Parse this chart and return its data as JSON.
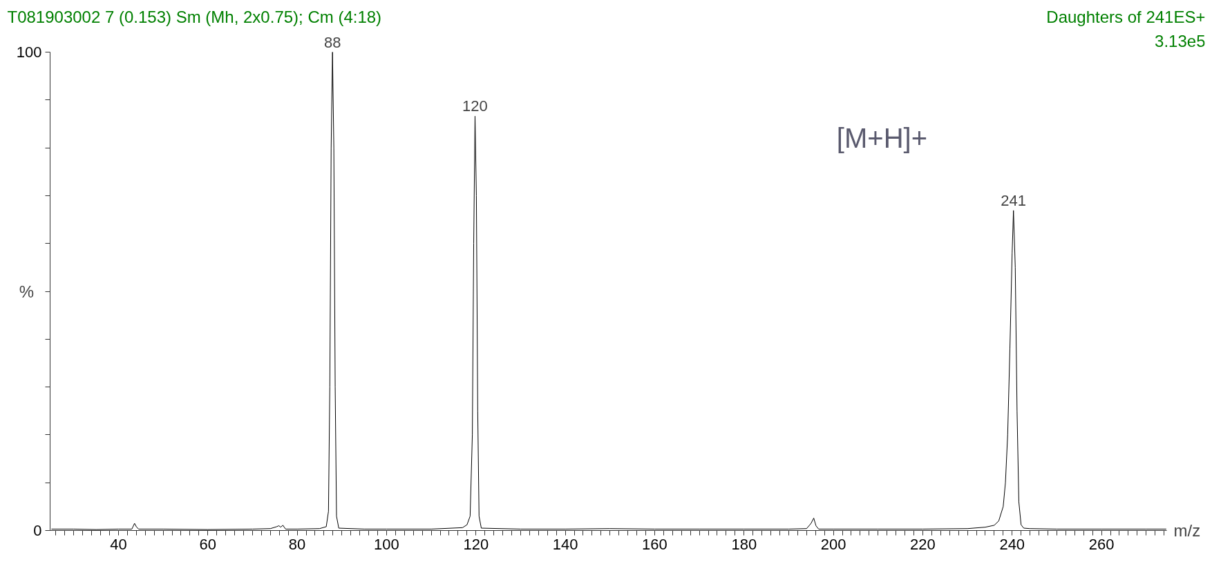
{
  "chart_data": {
    "type": "line",
    "title": "T081903002  7 (0.153) Sm (Mh, 2x0.75); Cm (4:18)",
    "xlabel": "m/z",
    "ylabel": "%",
    "annotations": [
      "Daughters of 241ES+",
      "3.13e5",
      "[M+H]+",
      {
        "text": "88",
        "x": 87.9,
        "y": 100
      },
      {
        "text": "120",
        "x": 119.8,
        "y": 86.6
      },
      {
        "text": "241",
        "x": 240.3,
        "y": 66.9
      }
    ],
    "series": [
      {
        "color": "#000000",
        "x": [
          25,
          30,
          35,
          40,
          43,
          43.6,
          44,
          44.5,
          50,
          60,
          70,
          74,
          75.4,
          75.9,
          76.3,
          76.8,
          77.4,
          80,
          85,
          86.5,
          87.0,
          87.3,
          87.6,
          87.9,
          88.2,
          88.5,
          88.8,
          89.3,
          95,
          100,
          110,
          117,
          118,
          118.7,
          119.2,
          119.5,
          119.8,
          120.1,
          120.4,
          120.7,
          121.2,
          130,
          140,
          150,
          160,
          170,
          180,
          190,
          194,
          195.0,
          195.6,
          196.1,
          196.7,
          200,
          210,
          220,
          230,
          234,
          236,
          237,
          238,
          238.5,
          239.0,
          239.5,
          240.0,
          240.3,
          240.7,
          241.1,
          241.5,
          242.0,
          242.6,
          244,
          250,
          260,
          270,
          274.5
        ],
        "values": [
          0.3,
          0.3,
          0.2,
          0.3,
          0.3,
          1.5,
          0.8,
          0.3,
          0.3,
          0.2,
          0.3,
          0.4,
          0.8,
          1.0,
          0.7,
          1.1,
          0.3,
          0.3,
          0.4,
          0.8,
          4,
          30,
          80,
          100,
          80,
          30,
          3,
          0.5,
          0.3,
          0.3,
          0.3,
          0.6,
          1.2,
          3,
          20,
          60,
          86.6,
          70,
          25,
          3,
          0.5,
          0.3,
          0.3,
          0.4,
          0.3,
          0.3,
          0.3,
          0.3,
          0.4,
          1.5,
          2.6,
          1.0,
          0.3,
          0.3,
          0.3,
          0.3,
          0.4,
          0.7,
          1.1,
          2,
          5,
          10,
          20,
          38,
          58,
          66.9,
          55,
          25,
          6,
          1.2,
          0.5,
          0.4,
          0.3,
          0.3,
          0.3,
          0.3
        ]
      }
    ],
    "xlim": [
      24.7,
      274.6
    ],
    "ylim": [
      0,
      100
    ],
    "xticks": [
      {
        "value": 26,
        "label": null
      },
      {
        "value": 28,
        "label": null
      },
      {
        "value": 30,
        "label": null
      },
      {
        "value": 32,
        "label": null
      },
      {
        "value": 34,
        "label": null
      },
      {
        "value": 36,
        "label": null
      },
      {
        "value": 38,
        "label": null
      },
      40,
      {
        "value": 42,
        "label": null
      },
      {
        "value": 44,
        "label": null
      },
      {
        "value": 46,
        "label": null
      },
      {
        "value": 48,
        "label": null
      },
      {
        "value": 50,
        "label": null
      },
      {
        "value": 52,
        "label": null
      },
      {
        "value": 54,
        "label": null
      },
      {
        "value": 56,
        "label": null
      },
      {
        "value": 58,
        "label": null
      },
      60,
      {
        "value": 62,
        "label": null
      },
      {
        "value": 64,
        "label": null
      },
      {
        "value": 66,
        "label": null
      },
      {
        "value": 68,
        "label": null
      },
      {
        "value": 70,
        "label": null
      },
      {
        "value": 72,
        "label": null
      },
      {
        "value": 74,
        "label": null
      },
      {
        "value": 76,
        "label": null
      },
      {
        "value": 78,
        "label": null
      },
      80,
      {
        "value": 82,
        "label": null
      },
      {
        "value": 84,
        "label": null
      },
      {
        "value": 86,
        "label": null
      },
      {
        "value": 88,
        "label": null
      },
      {
        "value": 90,
        "label": null
      },
      {
        "value": 92,
        "label": null
      },
      {
        "value": 94,
        "label": null
      },
      {
        "value": 96,
        "label": null
      },
      {
        "value": 98,
        "label": null
      },
      100,
      {
        "value": 102,
        "label": null
      },
      {
        "value": 104,
        "label": null
      },
      {
        "value": 106,
        "label": null
      },
      {
        "value": 108,
        "label": null
      },
      {
        "value": 110,
        "label": null
      },
      {
        "value": 112,
        "label": null
      },
      {
        "value": 114,
        "label": null
      },
      {
        "value": 116,
        "label": null
      },
      {
        "value": 118,
        "label": null
      },
      120,
      {
        "value": 122,
        "label": null
      },
      {
        "value": 124,
        "label": null
      },
      {
        "value": 126,
        "label": null
      },
      {
        "value": 128,
        "label": null
      },
      {
        "value": 130,
        "label": null
      },
      {
        "value": 132,
        "label": null
      },
      {
        "value": 134,
        "label": null
      },
      {
        "value": 136,
        "label": null
      },
      {
        "value": 138,
        "label": null
      },
      140,
      {
        "value": 142,
        "label": null
      },
      {
        "value": 144,
        "label": null
      },
      {
        "value": 146,
        "label": null
      },
      {
        "value": 148,
        "label": null
      },
      {
        "value": 150,
        "label": null
      },
      {
        "value": 152,
        "label": null
      },
      {
        "value": 154,
        "label": null
      },
      {
        "value": 156,
        "label": null
      },
      {
        "value": 158,
        "label": null
      },
      160,
      {
        "value": 162,
        "label": null
      },
      {
        "value": 164,
        "label": null
      },
      {
        "value": 166,
        "label": null
      },
      {
        "value": 168,
        "label": null
      },
      {
        "value": 170,
        "label": null
      },
      {
        "value": 172,
        "label": null
      },
      {
        "value": 174,
        "label": null
      },
      {
        "value": 176,
        "label": null
      },
      {
        "value": 178,
        "label": null
      },
      180,
      {
        "value": 182,
        "label": null
      },
      {
        "value": 184,
        "label": null
      },
      {
        "value": 186,
        "label": null
      },
      {
        "value": 188,
        "label": null
      },
      {
        "value": 190,
        "label": null
      },
      {
        "value": 192,
        "label": null
      },
      {
        "value": 194,
        "label": null
      },
      {
        "value": 196,
        "label": null
      },
      {
        "value": 198,
        "label": null
      },
      200,
      {
        "value": 202,
        "label": null
      },
      {
        "value": 204,
        "label": null
      },
      {
        "value": 206,
        "label": null
      },
      {
        "value": 208,
        "label": null
      },
      {
        "value": 210,
        "label": null
      },
      {
        "value": 212,
        "label": null
      },
      {
        "value": 214,
        "label": null
      },
      {
        "value": 216,
        "label": null
      },
      {
        "value": 218,
        "label": null
      },
      220,
      {
        "value": 222,
        "label": null
      },
      {
        "value": 224,
        "label": null
      },
      {
        "value": 226,
        "label": null
      },
      {
        "value": 228,
        "label": null
      },
      {
        "value": 230,
        "label": null
      },
      {
        "value": 232,
        "label": null
      },
      {
        "value": 234,
        "label": null
      },
      {
        "value": 236,
        "label": null
      },
      {
        "value": 238,
        "label": null
      },
      240,
      {
        "value": 242,
        "label": null
      },
      {
        "value": 244,
        "label": null
      },
      {
        "value": 246,
        "label": null
      },
      {
        "value": 248,
        "label": null
      },
      {
        "value": 250,
        "label": null
      },
      {
        "value": 252,
        "label": null
      },
      {
        "value": 254,
        "label": null
      },
      {
        "value": 256,
        "label": null
      },
      {
        "value": 258,
        "label": null
      },
      260,
      {
        "value": 262,
        "label": null
      },
      {
        "value": 264,
        "label": null
      },
      {
        "value": 266,
        "label": null
      },
      {
        "value": 268,
        "label": null
      },
      {
        "value": 270,
        "label": null
      },
      {
        "value": 272,
        "label": null
      },
      {
        "value": 274,
        "label": null
      }
    ],
    "yticks": [
      0,
      {
        "value": 10,
        "label": null
      },
      {
        "value": 20,
        "label": null
      },
      {
        "value": 30,
        "label": null
      },
      {
        "value": 40,
        "label": null
      },
      {
        "value": 50,
        "label": null
      },
      {
        "value": 60,
        "label": null
      },
      {
        "value": 70,
        "label": null
      },
      {
        "value": 80,
        "label": null
      },
      {
        "value": 90,
        "label": null
      },
      100
    ],
    "line_style": "solid"
  }
}
